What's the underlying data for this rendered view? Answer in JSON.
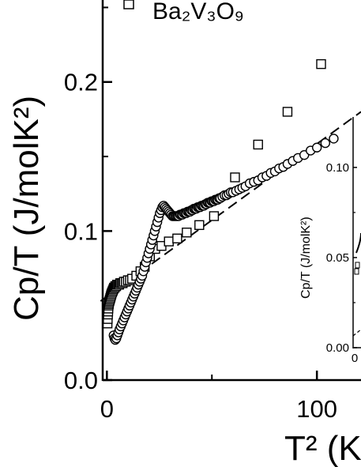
{
  "chart_data": {
    "type": "scatter",
    "ylabel": "Cp/T (J/molK²)",
    "xlabel": "T² (K",
    "xlim": [
      -2,
      121
    ],
    "ylim": [
      0.0,
      0.255
    ],
    "x_ticks": [
      {
        "value": 0,
        "label": "0"
      },
      {
        "value": 100,
        "label": "100"
      }
    ],
    "y_ticks": [
      {
        "value": 0.0,
        "label": "0.0"
      },
      {
        "value": 0.1,
        "label": "0.1"
      },
      {
        "value": 0.2,
        "label": "0.2"
      }
    ],
    "legend": {
      "position": "top-left",
      "entries": [
        {
          "marker": "square",
          "label": "Ba₂V₃O₉"
        }
      ]
    },
    "series": [
      {
        "name": "Ba₂V₃O₉",
        "marker": "square",
        "x": [
          0.3,
          0.4,
          0.5,
          0.6,
          0.7,
          0.8,
          0.9,
          1.0,
          1.2,
          1.4,
          1.6,
          1.8,
          2.0,
          2.2,
          2.5,
          2.8,
          3.1,
          3.4,
          3.7,
          4.0,
          4.4,
          4.8,
          5.3,
          5.8,
          6.3,
          6.9,
          7.5,
          8.1,
          9.0,
          10.0,
          11.0,
          12.0,
          14.0,
          16.0,
          18.0,
          20.5,
          23.0,
          26.0,
          29.5,
          33.5,
          38.0,
          44.0,
          51.0,
          61.0,
          72.0,
          86.0,
          102.0
        ],
        "y": [
          0.038,
          0.041,
          0.044,
          0.046,
          0.048,
          0.05,
          0.051,
          0.052,
          0.053,
          0.054,
          0.055,
          0.056,
          0.057,
          0.058,
          0.059,
          0.06,
          0.061,
          0.062,
          0.062,
          0.063,
          0.063,
          0.064,
          0.064,
          0.064,
          0.065,
          0.065,
          0.065,
          0.066,
          0.066,
          0.067,
          0.067,
          0.068,
          0.07,
          0.073,
          0.076,
          0.083,
          0.088,
          0.09,
          0.093,
          0.095,
          0.099,
          0.104,
          0.11,
          0.136,
          0.158,
          0.18,
          0.212
        ]
      },
      {
        "name": "",
        "marker": "circle",
        "x": [
          3.2,
          3.6,
          4.0,
          4.5,
          5.0,
          5.5,
          6.0,
          6.6,
          7.2,
          7.8,
          8.4,
          9.0,
          9.6,
          10.2,
          10.8,
          11.4,
          12.0,
          12.6,
          13.2,
          13.8,
          14.4,
          15.0,
          15.6,
          16.2,
          16.8,
          17.4,
          18.0,
          18.6,
          19.2,
          19.8,
          20.4,
          21.0,
          21.6,
          22.2,
          22.8,
          23.4,
          24.0,
          24.6,
          25.2,
          25.8,
          26.4,
          27.0,
          27.6,
          28.2,
          28.8,
          29.4,
          30.0,
          30.6,
          31.2,
          31.8,
          32.4,
          33.0,
          33.6,
          34.2,
          34.8,
          35.4,
          36.0,
          36.6,
          37.2,
          37.8,
          38.4,
          39.0,
          39.6,
          40.2,
          40.8,
          41.4,
          42.0,
          42.6,
          43.2,
          43.8,
          44.4,
          45.0,
          45.6,
          46.2,
          46.8,
          47.4,
          48.0,
          48.6,
          49.2,
          49.8,
          50.4,
          51.0,
          51.6,
          52.2,
          52.8,
          53.4,
          54.0,
          55.0,
          56.0,
          57.0,
          58.0,
          59.0,
          60.0,
          61.5,
          63.0,
          64.5,
          66.0,
          68.0,
          70.0,
          72.0,
          74.0,
          76.0,
          78.0,
          80.0,
          82.0,
          84.0,
          86.0,
          88.5,
          91.0,
          94.0,
          97.0,
          100.0,
          104.0,
          108.0
        ],
        "y": [
          0.03,
          0.028,
          0.027,
          0.028,
          0.03,
          0.032,
          0.034,
          0.036,
          0.038,
          0.04,
          0.042,
          0.044,
          0.046,
          0.048,
          0.05,
          0.052,
          0.054,
          0.056,
          0.058,
          0.06,
          0.062,
          0.064,
          0.066,
          0.068,
          0.07,
          0.073,
          0.076,
          0.079,
          0.082,
          0.085,
          0.088,
          0.091,
          0.094,
          0.097,
          0.1,
          0.103,
          0.106,
          0.109,
          0.112,
          0.114,
          0.116,
          0.117,
          0.116,
          0.115,
          0.114,
          0.113,
          0.112,
          0.111,
          0.11,
          0.11,
          0.11,
          0.11,
          0.11,
          0.11,
          0.111,
          0.111,
          0.111,
          0.112,
          0.112,
          0.112,
          0.113,
          0.113,
          0.113,
          0.114,
          0.114,
          0.115,
          0.115,
          0.115,
          0.116,
          0.116,
          0.116,
          0.117,
          0.117,
          0.117,
          0.118,
          0.118,
          0.119,
          0.119,
          0.119,
          0.12,
          0.12,
          0.12,
          0.121,
          0.121,
          0.121,
          0.122,
          0.122,
          0.123,
          0.124,
          0.124,
          0.125,
          0.126,
          0.126,
          0.127,
          0.128,
          0.129,
          0.13,
          0.132,
          0.133,
          0.134,
          0.136,
          0.137,
          0.139,
          0.14,
          0.142,
          0.143,
          0.145,
          0.147,
          0.149,
          0.151,
          0.154,
          0.156,
          0.159,
          0.162
        ]
      }
    ],
    "fit_line": {
      "style": "dashed",
      "points": [
        [
          -3,
          0.053
        ],
        [
          121,
          0.18
        ]
      ]
    },
    "inset": {
      "ylabel": "Cp/T (J/molK²)",
      "y_ticks": [
        {
          "value": 0.0,
          "label": "0.00"
        },
        {
          "value": 0.05,
          "label": "0.05"
        },
        {
          "value": 0.1,
          "label": "0.10"
        }
      ],
      "x_ticks": [
        {
          "value": 0,
          "label": "0"
        }
      ],
      "ylim": [
        0.0,
        0.128
      ]
    }
  }
}
